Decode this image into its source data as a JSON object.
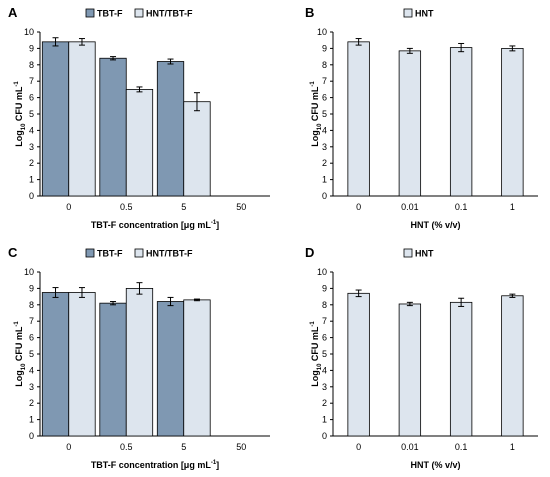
{
  "colors": {
    "dark": "#7f98b2",
    "light": "#dde5ee",
    "stroke": "#000000"
  },
  "chart_data": [
    {
      "panel": "A",
      "type": "bar",
      "categories": [
        "0",
        "0.5",
        "5",
        "50"
      ],
      "series": [
        {
          "name": "TBT-F",
          "values": [
            9.4,
            8.4,
            8.2,
            null
          ],
          "errors": [
            0.25,
            0.1,
            0.15,
            null
          ]
        },
        {
          "name": "HNT/TBT-F",
          "values": [
            9.4,
            6.5,
            5.75,
            null
          ],
          "errors": [
            0.2,
            0.15,
            0.55,
            null
          ]
        }
      ],
      "xlabel_pre": "TBT-F concentration [μg mL",
      "xlabel_sup": "-1",
      "xlabel_post": "]",
      "ylabel_pre": "Log",
      "ylabel_sub": "10",
      "ylabel_post": " CFU mL",
      "ylabel_sup": "-1",
      "ylim": [
        0,
        10
      ],
      "yticks": [
        "0",
        "1",
        "2",
        "3",
        "4",
        "5",
        "6",
        "7",
        "8",
        "9",
        "10"
      ]
    },
    {
      "panel": "B",
      "type": "bar",
      "categories": [
        "0",
        "0.01",
        "0.1",
        "1"
      ],
      "series": [
        {
          "name": "HNT",
          "values": [
            9.4,
            8.85,
            9.05,
            9.0
          ],
          "errors": [
            0.2,
            0.15,
            0.25,
            0.15
          ]
        }
      ],
      "xlabel_pre": "HNT (% v/v)",
      "xlabel_sup": "",
      "xlabel_post": "",
      "ylabel_pre": "Log",
      "ylabel_sub": "10",
      "ylabel_post": " CFU mL",
      "ylabel_sup": "-1",
      "ylim": [
        0,
        10
      ],
      "yticks": [
        "0",
        "1",
        "2",
        "3",
        "4",
        "5",
        "6",
        "7",
        "8",
        "9",
        "10"
      ]
    },
    {
      "panel": "C",
      "type": "bar",
      "categories": [
        "0",
        "0.5",
        "5",
        "50"
      ],
      "series": [
        {
          "name": "TBT-F",
          "values": [
            8.75,
            8.1,
            8.2,
            null
          ],
          "errors": [
            0.3,
            0.1,
            0.25,
            null
          ]
        },
        {
          "name": "HNT/TBT-F",
          "values": [
            8.75,
            9.0,
            8.3,
            null
          ],
          "errors": [
            0.3,
            0.35,
            0.05,
            null
          ]
        }
      ],
      "xlabel_pre": "TBT-F concentration [μg mL",
      "xlabel_sup": "-1",
      "xlabel_post": "]",
      "ylabel_pre": "Log",
      "ylabel_sub": "10",
      "ylabel_post": " CFU mL",
      "ylabel_sup": "-1",
      "ylim": [
        0,
        10
      ],
      "yticks": [
        "0",
        "1",
        "2",
        "3",
        "4",
        "5",
        "6",
        "7",
        "8",
        "9",
        "10"
      ]
    },
    {
      "panel": "D",
      "type": "bar",
      "categories": [
        "0",
        "0.01",
        "0.1",
        "1"
      ],
      "series": [
        {
          "name": "HNT",
          "values": [
            8.7,
            8.05,
            8.15,
            8.55
          ],
          "errors": [
            0.2,
            0.1,
            0.25,
            0.1
          ]
        }
      ],
      "xlabel_pre": "HNT (% v/v)",
      "xlabel_sup": "",
      "xlabel_post": "",
      "ylabel_pre": "Log",
      "ylabel_sub": "10",
      "ylabel_post": " CFU mL",
      "ylabel_sup": "-1",
      "ylim": [
        0,
        10
      ],
      "yticks": [
        "0",
        "1",
        "2",
        "3",
        "4",
        "5",
        "6",
        "7",
        "8",
        "9",
        "10"
      ]
    }
  ]
}
